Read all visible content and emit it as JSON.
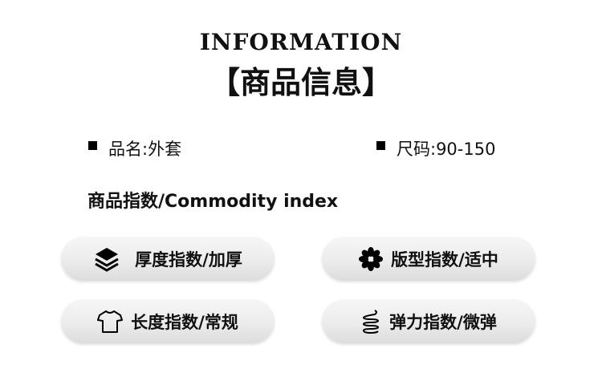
{
  "header": {
    "title_en": "INFORMATION",
    "title_cn": "【商品信息】"
  },
  "specs": [
    {
      "label": "品名:外套"
    },
    {
      "label": "尺码:90-150"
    }
  ],
  "section_title": "商品指数/Commodity index",
  "indices": [
    {
      "icon": "layers-icon",
      "label": "厚度指数/加厚"
    },
    {
      "icon": "flower-icon",
      "label": "版型指数/适中"
    },
    {
      "icon": "tshirt-icon",
      "label": "长度指数/常规"
    },
    {
      "icon": "spring-icon",
      "label": "弹力指数/微弹"
    }
  ]
}
